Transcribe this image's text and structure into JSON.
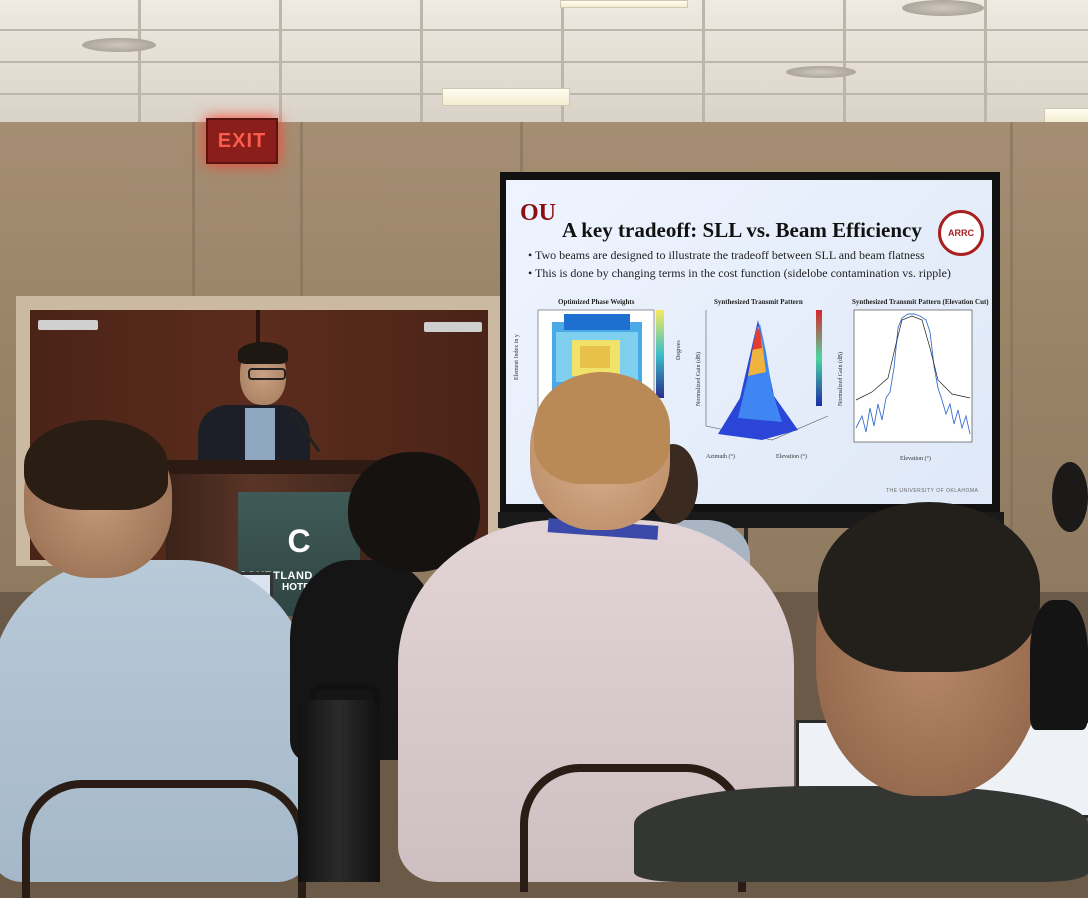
{
  "exit_sign": "EXIT",
  "hotel_sign": {
    "logo": "C",
    "name": "COURTLAND GRAND",
    "sub": "HOTEL"
  },
  "slide": {
    "logo_text": "OU",
    "title": "A key tradeoff: SLL vs. Beam Efficiency",
    "badge_text": "ARRC",
    "bullets": [
      "Two beams are designed to illustrate the tradeoff between SLL and beam flatness",
      "This is done by changing terms in the cost function (sidelobe contamination vs. ripple)"
    ],
    "plots": [
      {
        "title": "Optimized Phase Weights",
        "ylabel": "Element Index in y",
        "cbar_label": "Degrees"
      },
      {
        "title": "Synthesized Transmit Pattern",
        "ylabel": "Normalized Gain (dB)",
        "xlabel": "Azimuth (°)",
        "xlabel2": "Elevation (°)"
      },
      {
        "title": "Synthesized Transmit Pattern (Elevation Cut)",
        "ylabel": "Normalized Gain (dB)",
        "xlabel": "Elevation (°)"
      }
    ],
    "footer": "THE UNIVERSITY OF OKLAHOMA"
  },
  "colors": {
    "exit_red": "#ff5a4e",
    "ou_crimson": "#8b0f0f",
    "hotel_sign": "#3f5a57"
  }
}
